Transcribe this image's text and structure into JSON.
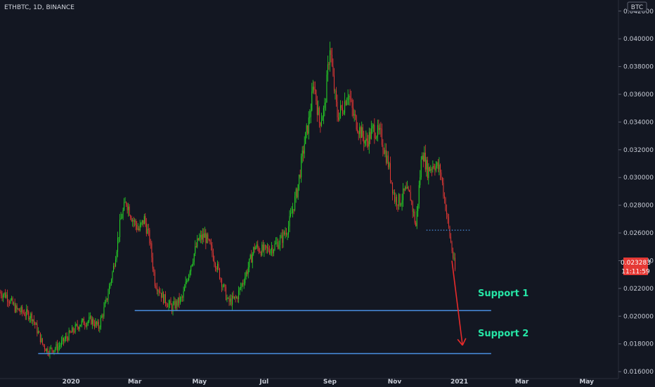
{
  "header": {
    "symbol": "ETHBTC, 1D, BINANCE",
    "currency_button": "BTC"
  },
  "price_badge": {
    "price": "0.023283",
    "countdown": "11:11:59"
  },
  "annotations": {
    "support1": "Support 1",
    "support2": "Support 2"
  },
  "colors": {
    "background": "#131722",
    "up": "#26d626",
    "down": "#e53935",
    "support_line": "#4a90e2",
    "annotation": "#26e6a6",
    "arrow": "#e82b2b",
    "price_badge": "#e53935"
  },
  "chart_data": {
    "type": "candlestick",
    "title": "",
    "xlabel": "",
    "ylabel": "",
    "y_axis": {
      "position": "right",
      "ylim": [
        0.0155,
        0.0428
      ],
      "ticks": [
        "0.042000",
        "0.040000",
        "0.038000",
        "0.036000",
        "0.034000",
        "0.032000",
        "0.030000",
        "0.028000",
        "0.026000",
        "0.024000",
        "0.022000",
        "0.020000",
        "0.018000",
        "0.016000"
      ]
    },
    "x_axis": {
      "range": [
        "2019-10-26",
        "2021-05-31"
      ],
      "ticks": [
        {
          "label": "2020",
          "date": "2020-01-01"
        },
        {
          "label": "Mar",
          "date": "2020-03-01"
        },
        {
          "label": "May",
          "date": "2020-05-01"
        },
        {
          "label": "Jul",
          "date": "2020-07-01"
        },
        {
          "label": "Sep",
          "date": "2020-09-01"
        },
        {
          "label": "Nov",
          "date": "2020-11-01"
        },
        {
          "label": "2021",
          "date": "2021-01-01"
        },
        {
          "label": "Mar",
          "date": "2021-03-01"
        },
        {
          "label": "May",
          "date": "2021-05-01"
        }
      ]
    },
    "close_path": [
      [
        "2019-10-26",
        0.0217
      ],
      [
        "2019-11-01",
        0.0215
      ],
      [
        "2019-11-10",
        0.0205
      ],
      [
        "2019-11-25",
        0.02
      ],
      [
        "2019-12-05",
        0.018
      ],
      [
        "2019-12-10",
        0.0175
      ],
      [
        "2019-12-20",
        0.0178
      ],
      [
        "2020-01-01",
        0.0188
      ],
      [
        "2020-01-10",
        0.0195
      ],
      [
        "2020-01-20",
        0.0197
      ],
      [
        "2020-01-27",
        0.0192
      ],
      [
        "2020-02-03",
        0.021
      ],
      [
        "2020-02-10",
        0.0235
      ],
      [
        "2020-02-17",
        0.027
      ],
      [
        "2020-02-22",
        0.0283
      ],
      [
        "2020-02-28",
        0.027
      ],
      [
        "2020-03-05",
        0.0262
      ],
      [
        "2020-03-10",
        0.027
      ],
      [
        "2020-03-15",
        0.0255
      ],
      [
        "2020-03-20",
        0.0225
      ],
      [
        "2020-03-28",
        0.0213
      ],
      [
        "2020-04-05",
        0.0206
      ],
      [
        "2020-04-15",
        0.0213
      ],
      [
        "2020-04-22",
        0.0235
      ],
      [
        "2020-04-30",
        0.0255
      ],
      [
        "2020-05-06",
        0.0258
      ],
      [
        "2020-05-12",
        0.0248
      ],
      [
        "2020-05-20",
        0.023
      ],
      [
        "2020-05-28",
        0.021
      ],
      [
        "2020-06-05",
        0.0213
      ],
      [
        "2020-06-15",
        0.0233
      ],
      [
        "2020-06-22",
        0.025
      ],
      [
        "2020-07-01",
        0.0247
      ],
      [
        "2020-07-10",
        0.025
      ],
      [
        "2020-07-17",
        0.0255
      ],
      [
        "2020-07-24",
        0.0265
      ],
      [
        "2020-08-01",
        0.029
      ],
      [
        "2020-08-08",
        0.0325
      ],
      [
        "2020-08-12",
        0.034
      ],
      [
        "2020-08-17",
        0.0368
      ],
      [
        "2020-08-22",
        0.034
      ],
      [
        "2020-08-27",
        0.035
      ],
      [
        "2020-09-01",
        0.0395
      ],
      [
        "2020-09-04",
        0.037
      ],
      [
        "2020-09-08",
        0.0345
      ],
      [
        "2020-09-13",
        0.035
      ],
      [
        "2020-09-18",
        0.0362
      ],
      [
        "2020-09-23",
        0.0345
      ],
      [
        "2020-09-28",
        0.0336
      ],
      [
        "2020-10-05",
        0.0325
      ],
      [
        "2020-10-12",
        0.0335
      ],
      [
        "2020-10-19",
        0.033
      ],
      [
        "2020-10-26",
        0.031
      ],
      [
        "2020-11-01",
        0.0285
      ],
      [
        "2020-11-06",
        0.0283
      ],
      [
        "2020-11-11",
        0.029
      ],
      [
        "2020-11-16",
        0.0286
      ],
      [
        "2020-11-21",
        0.0265
      ],
      [
        "2020-11-27",
        0.032
      ],
      [
        "2020-12-02",
        0.0305
      ],
      [
        "2020-12-08",
        0.031
      ],
      [
        "2020-12-14",
        0.0305
      ],
      [
        "2020-12-18",
        0.0285
      ],
      [
        "2020-12-23",
        0.0258
      ],
      [
        "2020-12-28",
        0.0233
      ]
    ],
    "support_lines": [
      {
        "label": "Support 1",
        "from": "2020-03-01",
        "to": "2021-01-31",
        "y": 0.0204
      },
      {
        "label": "Support 2",
        "from": "2019-12-01",
        "to": "2021-01-31",
        "y": 0.0173
      }
    ],
    "dotted_level": {
      "from": "2020-12-01",
      "to": "2021-01-12",
      "y": 0.0262
    },
    "arrow": {
      "from": [
        "2020-12-25",
        0.024
      ],
      "to": [
        "2021-01-04",
        0.0179
      ]
    },
    "current_price": 0.023283
  }
}
